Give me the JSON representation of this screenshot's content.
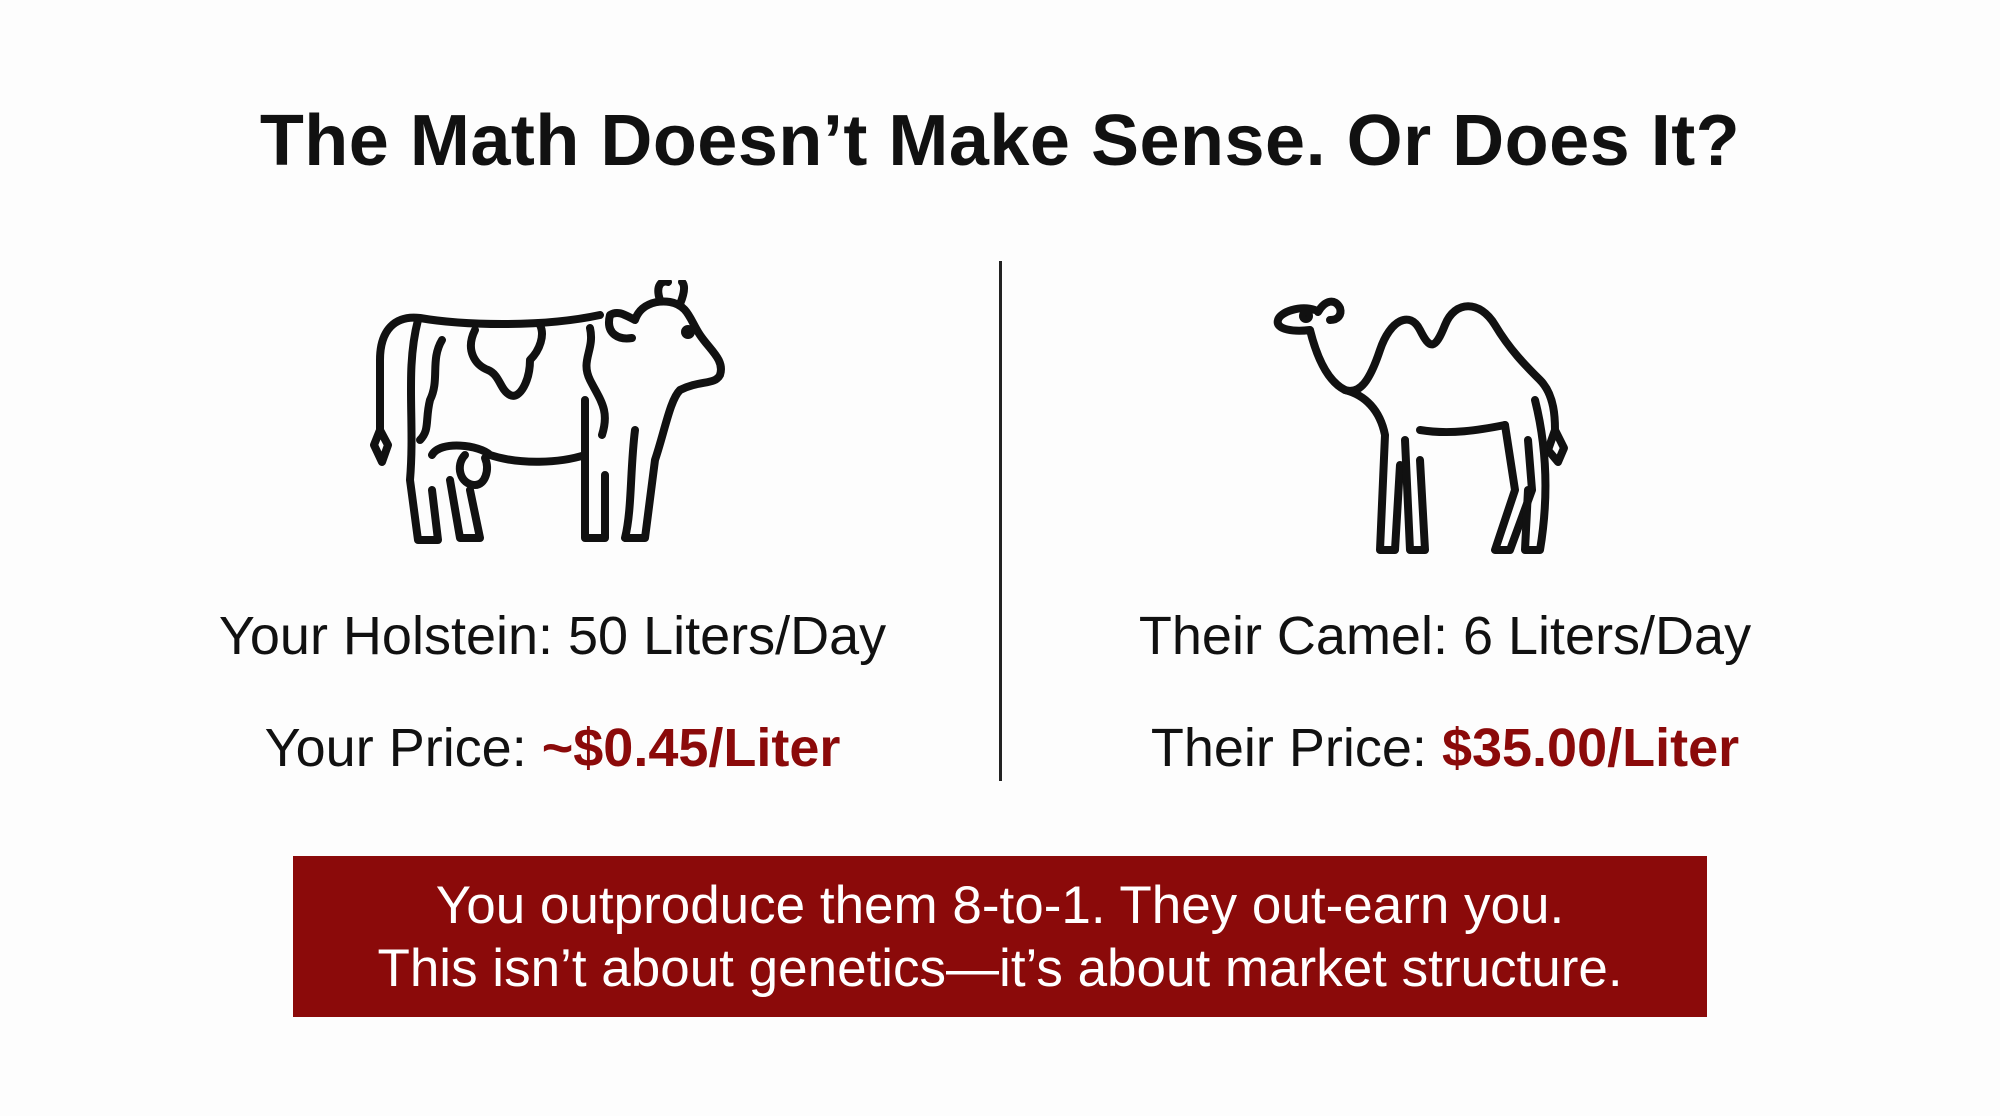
{
  "title": "The Math Doesn’t Make Sense. Or Does It?",
  "left": {
    "icon": "cow-icon",
    "production": "Your Holstein: 50 Liters/Day",
    "price_label": "Your Price: ",
    "price_value": "~$0.45/Liter"
  },
  "right": {
    "icon": "camel-icon",
    "production": "Their Camel: 6 Liters/Day",
    "price_label": "Their Price: ",
    "price_value": "$35.00/Liter"
  },
  "banner": {
    "line1": "You outproduce them 8-to-1. They out-earn you.",
    "line2": "This isn’t about genetics—it’s about market structure."
  },
  "colors": {
    "accent": "#8b0a0a",
    "text": "#111111",
    "background": "#fdfdfd"
  }
}
